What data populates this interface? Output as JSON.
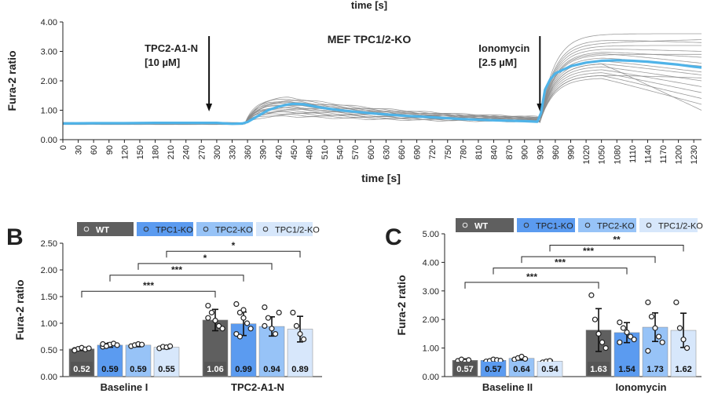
{
  "chart_data": [
    {
      "type": "line",
      "panel_title": "MEF TPC1/2-KO",
      "top_label": "time [s]",
      "xlabel": "time [s]",
      "ylabel": "Fura-2 ratio",
      "xlim": [
        0,
        1245
      ],
      "ylim": [
        0,
        4
      ],
      "x_ticks": [
        0,
        30,
        60,
        90,
        120,
        150,
        180,
        210,
        240,
        270,
        300,
        330,
        360,
        390,
        420,
        450,
        480,
        510,
        540,
        570,
        600,
        630,
        660,
        690,
        720,
        750,
        780,
        810,
        840,
        870,
        900,
        930,
        960,
        990,
        1020,
        1050,
        1080,
        1110,
        1140,
        1170,
        1200,
        1230
      ],
      "y_ticks": [
        0,
        1,
        2,
        3,
        4
      ],
      "y_tick_labels": [
        "0.00",
        "1.00",
        "2.00",
        "3.00",
        "4.00"
      ],
      "annotations": [
        {
          "line1": "TPC2-A1-N",
          "line2": "[10 µM]",
          "x": 285
        },
        {
          "line1": "Ionomycin",
          "line2": "[2.5 µM]",
          "x": 930
        }
      ],
      "series": [
        {
          "name": "mean",
          "color": "#4fb3e8",
          "x": [
            0,
            60,
            120,
            180,
            240,
            300,
            330,
            350,
            360,
            380,
            400,
            420,
            440,
            450,
            470,
            500,
            540,
            600,
            660,
            720,
            780,
            840,
            900,
            925,
            932,
            940,
            950,
            960,
            990,
            1020,
            1050,
            1080,
            1110,
            1140,
            1170,
            1200,
            1230,
            1245
          ],
          "y": [
            0.55,
            0.56,
            0.56,
            0.57,
            0.57,
            0.57,
            0.54,
            0.55,
            0.6,
            0.8,
            1.0,
            1.12,
            1.2,
            1.22,
            1.2,
            1.1,
            1.0,
            0.9,
            0.82,
            0.76,
            0.7,
            0.66,
            0.63,
            0.61,
            0.9,
            1.7,
            2.05,
            2.25,
            2.5,
            2.62,
            2.68,
            2.7,
            2.68,
            2.65,
            2.6,
            2.55,
            2.48,
            2.45
          ]
        }
      ],
      "cell_traces": [
        {
          "peak": 1.45,
          "plateau": 3.6,
          "final": 3.6
        },
        {
          "peak": 1.4,
          "plateau": 3.4,
          "final": 3.3
        },
        {
          "peak": 1.35,
          "plateau": 3.2,
          "final": 3.2
        },
        {
          "peak": 1.3,
          "plateau": 3.1,
          "final": 3.0
        },
        {
          "peak": 1.25,
          "plateau": 3.0,
          "final": 2.8
        },
        {
          "peak": 1.2,
          "plateau": 2.95,
          "final": 2.6
        },
        {
          "peak": 1.15,
          "plateau": 2.8,
          "final": 2.5
        },
        {
          "peak": 1.1,
          "plateau": 2.7,
          "final": 2.3
        },
        {
          "peak": 1.05,
          "plateau": 2.6,
          "final": 2.2
        },
        {
          "peak": 1.0,
          "plateau": 2.5,
          "final": 2.0
        },
        {
          "peak": 0.95,
          "plateau": 2.4,
          "final": 1.8
        },
        {
          "peak": 0.9,
          "plateau": 2.3,
          "final": 1.6
        },
        {
          "peak": 0.85,
          "plateau": 2.2,
          "final": 1.4
        },
        {
          "peak": 0.8,
          "plateau": 2.1,
          "final": 1.2
        },
        {
          "peak": 1.3,
          "plateau": 2.9,
          "final": 2.9
        },
        {
          "peak": 1.1,
          "plateau": 2.6,
          "final": 1.0
        },
        {
          "peak": 0.95,
          "plateau": 3.3,
          "final": 3.4
        },
        {
          "peak": 1.2,
          "plateau": 2.2,
          "final": 2.1
        }
      ]
    },
    {
      "type": "bar",
      "panel_label": "B",
      "ylabel": "Fura-2 ratio",
      "ylim": [
        0,
        2.5
      ],
      "y_ticks": [
        0,
        0.5,
        1,
        1.5,
        2,
        2.5
      ],
      "y_tick_labels": [
        "0.00",
        "0.50",
        "1.00",
        "1.50",
        "2.00",
        "2.50"
      ],
      "categories": [
        "Baseline I",
        "TPC2-A1-N"
      ],
      "legend": [
        "WT",
        "TPC1-KO",
        "TPC2-KO",
        "TPC1/2-KO"
      ],
      "series_colors": [
        "#5f5f5f",
        "#5b9bf0",
        "#97c3f7",
        "#d7e7fb"
      ],
      "series": [
        {
          "name": "WT",
          "values": [
            0.52,
            1.06
          ],
          "labels": [
            "0.52",
            "1.06"
          ],
          "errors": [
            0.03,
            0.2
          ]
        },
        {
          "name": "TPC1-KO",
          "values": [
            0.59,
            0.99
          ],
          "labels": [
            "0.59",
            "0.99"
          ],
          "errors": [
            0.04,
            0.22
          ]
        },
        {
          "name": "TPC2-KO",
          "values": [
            0.59,
            0.94
          ],
          "labels": [
            "0.59",
            "0.94"
          ],
          "errors": [
            0.03,
            0.18
          ]
        },
        {
          "name": "TPC1/2-KO",
          "values": [
            0.55,
            0.89
          ],
          "labels": [
            "0.55",
            "0.89"
          ],
          "errors": [
            0.03,
            0.24
          ]
        }
      ],
      "dots": [
        [
          [
            0.5,
            0.52,
            0.54,
            0.51,
            0.53,
            0.49
          ],
          [
            1.33,
            1.2,
            1.05,
            0.95,
            0.9,
            1.1
          ]
        ],
        [
          [
            0.56,
            0.58,
            0.6,
            0.62,
            0.59,
            0.61,
            0.57
          ],
          [
            1.36,
            1.2,
            1.1,
            1.0,
            0.9,
            0.8,
            0.75,
            1.25
          ]
        ],
        [
          [
            0.57,
            0.59,
            0.61,
            0.6
          ],
          [
            1.3,
            1.1,
            0.9,
            0.8,
            1.2,
            0.95
          ]
        ],
        [
          [
            0.53,
            0.56,
            0.55,
            0.57
          ],
          [
            1.2,
            0.95,
            0.8,
            0.7
          ]
        ]
      ],
      "significance": [
        {
          "a": [
            0,
            0
          ],
          "b": [
            1,
            0
          ],
          "label": "***"
        },
        {
          "a": [
            0,
            1
          ],
          "b": [
            1,
            1
          ],
          "label": "***"
        },
        {
          "a": [
            0,
            2
          ],
          "b": [
            1,
            2
          ],
          "label": "*"
        },
        {
          "a": [
            0,
            3
          ],
          "b": [
            1,
            3
          ],
          "label": "*"
        }
      ],
      "sig_levels": [
        1.6,
        1.9,
        2.12,
        2.35
      ]
    },
    {
      "type": "bar",
      "panel_label": "C",
      "ylabel": "Fura-2 ratio",
      "ylim": [
        0,
        5
      ],
      "y_ticks": [
        0,
        1,
        2,
        3,
        4,
        5
      ],
      "y_tick_labels": [
        "0.00",
        "1.00",
        "2.00",
        "3.00",
        "4.00",
        "5.00"
      ],
      "categories": [
        "Baseline II",
        "Ionomycin"
      ],
      "legend": [
        "WT",
        "TPC1-KO",
        "TPC2-KO",
        "TPC1/2-KO"
      ],
      "series_colors": [
        "#5f5f5f",
        "#5b9bf0",
        "#97c3f7",
        "#d7e7fb"
      ],
      "series": [
        {
          "name": "WT",
          "values": [
            0.57,
            1.63
          ],
          "labels": [
            "0.57",
            "1.63"
          ],
          "errors": [
            0.05,
            0.75
          ]
        },
        {
          "name": "TPC1-KO",
          "values": [
            0.57,
            1.54
          ],
          "labels": [
            "0.57",
            "1.54"
          ],
          "errors": [
            0.04,
            0.35
          ]
        },
        {
          "name": "TPC2-KO",
          "values": [
            0.64,
            1.73
          ],
          "labels": [
            "0.64",
            "1.73"
          ],
          "errors": [
            0.06,
            0.5
          ]
        },
        {
          "name": "TPC1/2-KO",
          "values": [
            0.54,
            1.62
          ],
          "labels": [
            "0.54",
            "1.62"
          ],
          "errors": [
            0.03,
            0.6
          ]
        }
      ],
      "dots": [
        [
          [
            0.55,
            0.6,
            0.52,
            0.58
          ],
          [
            2.85,
            2.0,
            1.5,
            1.2,
            1.0
          ]
        ],
        [
          [
            0.53,
            0.55,
            0.6,
            0.58,
            0.56
          ],
          [
            1.9,
            1.7,
            1.55,
            1.4,
            1.3,
            1.2
          ]
        ],
        [
          [
            0.6,
            0.65,
            0.7,
            0.62
          ],
          [
            2.6,
            2.1,
            1.7,
            1.4,
            1.2,
            0.9
          ]
        ],
        [
          [
            0.5,
            0.53,
            0.55
          ],
          [
            2.6,
            1.7,
            1.3,
            1.0
          ]
        ]
      ],
      "significance": [
        {
          "a": [
            0,
            0
          ],
          "b": [
            1,
            0
          ],
          "label": "***"
        },
        {
          "a": [
            0,
            1
          ],
          "b": [
            1,
            1
          ],
          "label": "***"
        },
        {
          "a": [
            0,
            2
          ],
          "b": [
            1,
            2
          ],
          "label": "***"
        },
        {
          "a": [
            0,
            3
          ],
          "b": [
            1,
            3
          ],
          "label": "**"
        }
      ],
      "sig_levels": [
        3.3,
        3.8,
        4.2,
        4.6
      ]
    }
  ]
}
